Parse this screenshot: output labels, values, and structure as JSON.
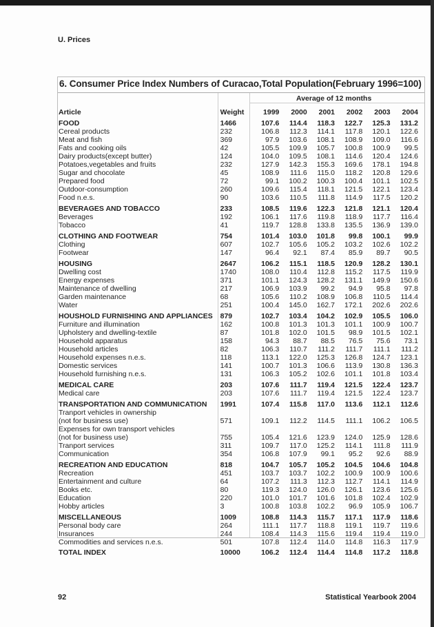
{
  "section": "U. Prices",
  "table": {
    "title": "6. Consumer Price Index Numbers of Curacao,Total Population(February 1996=100)",
    "span_header": "Average of 12 months",
    "headers": [
      "Article",
      "Weight",
      "1999",
      "2000",
      "2001",
      "2002",
      "2003",
      "2004"
    ],
    "rows": [
      {
        "type": "group",
        "cells": [
          "FOOD",
          "1466",
          "107.6",
          "114.4",
          "118.3",
          "122.7",
          "125.3",
          "131.2"
        ]
      },
      {
        "type": "item",
        "cells": [
          "Cereal products",
          "232",
          "106.8",
          "112.3",
          "114.1",
          "117.8",
          "120.1",
          "122.6"
        ]
      },
      {
        "type": "item",
        "cells": [
          "Meat and fish",
          "369",
          "97.9",
          "103.6",
          "108.1",
          "108.9",
          "109.0",
          "116.6"
        ]
      },
      {
        "type": "item",
        "cells": [
          "Fats and cooking oils",
          "42",
          "105.5",
          "109.9",
          "105.7",
          "100.8",
          "100.9",
          "99.5"
        ]
      },
      {
        "type": "item",
        "cells": [
          "Dairy products(except butter)",
          "124",
          "104.0",
          "109.5",
          "108.1",
          "114.6",
          "120.4",
          "124.6"
        ]
      },
      {
        "type": "item",
        "cells": [
          "Potatoes,vegetables and fruits",
          "232",
          "127.9",
          "142.3",
          "155.3",
          "169.6",
          "178.1",
          "194.8"
        ]
      },
      {
        "type": "item",
        "cells": [
          "Sugar and chocolate",
          "45",
          "108.9",
          "111.6",
          "115.0",
          "118.2",
          "120.8",
          "129.6"
        ]
      },
      {
        "type": "item",
        "cells": [
          "Prepared food",
          "72",
          "99.1",
          "100.2",
          "100.3",
          "100.4",
          "101.1",
          "102.5"
        ]
      },
      {
        "type": "item",
        "cells": [
          "Outdoor-consumption",
          "260",
          "109.6",
          "115.4",
          "118.1",
          "121.5",
          "122.1",
          "123.4"
        ]
      },
      {
        "type": "item",
        "cells": [
          "Food n.e.s.",
          "90",
          "103.6",
          "110.5",
          "111.8",
          "114.9",
          "117.5",
          "120.2"
        ]
      },
      {
        "type": "group",
        "cells": [
          "BEVERAGES AND TOBACCO",
          "233",
          "108.5",
          "119.6",
          "122.3",
          "121.8",
          "121.1",
          "120.4"
        ]
      },
      {
        "type": "item",
        "cells": [
          "Beverages",
          "192",
          "106.1",
          "117.6",
          "119.8",
          "118.9",
          "117.7",
          "116.4"
        ]
      },
      {
        "type": "item",
        "cells": [
          "Tobacco",
          "41",
          "119.7",
          "128.8",
          "133.8",
          "135.5",
          "136.9",
          "139.0"
        ]
      },
      {
        "type": "group",
        "cells": [
          "CLOTHING AND FOOTWEAR",
          "754",
          "101.4",
          "103.0",
          "101.8",
          "99.8",
          "100.1",
          "99.9"
        ]
      },
      {
        "type": "item",
        "cells": [
          "Clothing",
          "607",
          "102.7",
          "105.6",
          "105.2",
          "103.2",
          "102.6",
          "102.2"
        ]
      },
      {
        "type": "item",
        "cells": [
          "Footwear",
          "147",
          "96.4",
          "92.1",
          "87.4",
          "85.9",
          "89.7",
          "90.5"
        ]
      },
      {
        "type": "group",
        "cells": [
          "HOUSING",
          "2647",
          "106.2",
          "115.1",
          "118.5",
          "120.9",
          "128.2",
          "130.1"
        ]
      },
      {
        "type": "item",
        "cells": [
          "Dwelling cost",
          "1740",
          "108.0",
          "110.4",
          "112.8",
          "115.2",
          "117.5",
          "119.9"
        ]
      },
      {
        "type": "item",
        "cells": [
          "Energy expenses",
          "371",
          "101.1",
          "124.3",
          "128.2",
          "131.1",
          "149.9",
          "150.6"
        ]
      },
      {
        "type": "item",
        "cells": [
          "Maintenance of dwelling",
          "217",
          "106.9",
          "103.9",
          "99.2",
          "94.9",
          "95.8",
          "97.8"
        ]
      },
      {
        "type": "item",
        "cells": [
          "Garden maintenance",
          "68",
          "105.6",
          "110.2",
          "108.9",
          "106.8",
          "110.5",
          "114.4"
        ]
      },
      {
        "type": "item",
        "cells": [
          "Water",
          "251",
          "100.4",
          "145.0",
          "162.7",
          "172.1",
          "202.6",
          "202.6"
        ]
      },
      {
        "type": "group",
        "cells": [
          "HOUSHOLD FURNISHING AND APPLIANCES",
          "879",
          "102.7",
          "103.4",
          "104.2",
          "102.9",
          "105.5",
          "106.0"
        ]
      },
      {
        "type": "item",
        "cells": [
          "Furniture and illumination",
          "162",
          "100.8",
          "101.3",
          "101.3",
          "101.1",
          "100.9",
          "100.7"
        ]
      },
      {
        "type": "item",
        "cells": [
          "Upholstery and dwelling-textile",
          "87",
          "101.8",
          "102.0",
          "101.5",
          "98.9",
          "101.5",
          "102.1"
        ]
      },
      {
        "type": "item",
        "cells": [
          "Household apparatus",
          "158",
          "94.3",
          "88.7",
          "88.5",
          "76.5",
          "75.6",
          "73.1"
        ]
      },
      {
        "type": "item",
        "cells": [
          "Household articles",
          "82",
          "106.3",
          "110.7",
          "111.2",
          "111.7",
          "111.1",
          "111.2"
        ]
      },
      {
        "type": "item",
        "cells": [
          "Household expenses n.e.s.",
          "118",
          "113.1",
          "122.0",
          "125.3",
          "126.8",
          "124.7",
          "123.1"
        ]
      },
      {
        "type": "item",
        "cells": [
          "Domestic services",
          "141",
          "100.7",
          "101.3",
          "106.6",
          "113.9",
          "130.8",
          "136.3"
        ]
      },
      {
        "type": "item",
        "cells": [
          "Household furnishing n.e.s.",
          "131",
          "106.3",
          "105.2",
          "102.6",
          "101.1",
          "101.8",
          "103.4"
        ]
      },
      {
        "type": "group",
        "cells": [
          "MEDICAL CARE",
          "203",
          "107.6",
          "111.7",
          "119.4",
          "121.5",
          "122.4",
          "123.7"
        ]
      },
      {
        "type": "item",
        "cells": [
          "Medical care",
          "203",
          "107.6",
          "111.7",
          "119.4",
          "121.5",
          "122.4",
          "123.7"
        ]
      },
      {
        "type": "group",
        "cells": [
          "TRANSPORTATION AND COMMUNICATION",
          "1991",
          "107.4",
          "115.8",
          "117.0",
          "113.6",
          "112.1",
          "112.6"
        ]
      },
      {
        "type": "item",
        "cells": [
          "Tranport vehicles in ownership",
          "",
          "",
          "",
          "",
          "",
          "",
          ""
        ]
      },
      {
        "type": "item",
        "cells": [
          "(not for business use)",
          "571",
          "109.1",
          "112.2",
          "114.5",
          "111.1",
          "106.2",
          "106.5"
        ]
      },
      {
        "type": "item",
        "cells": [
          "Expenses for own transport vehicles",
          "",
          "",
          "",
          "",
          "",
          "",
          ""
        ]
      },
      {
        "type": "item",
        "cells": [
          "(not for business use)",
          "755",
          "105.4",
          "121.6",
          "123.9",
          "124.0",
          "125.9",
          "128.6"
        ]
      },
      {
        "type": "item",
        "cells": [
          "Tranport services",
          "311",
          "109.7",
          "117.0",
          "125.2",
          "114.1",
          "111.8",
          "111.9"
        ]
      },
      {
        "type": "item",
        "cells": [
          "Communication",
          "354",
          "106.8",
          "107.9",
          "99.1",
          "95.2",
          "92.6",
          "88.9"
        ]
      },
      {
        "type": "group",
        "cells": [
          "RECREATION AND EDUCATION",
          "818",
          "104.7",
          "105.7",
          "105.2",
          "104.5",
          "104.6",
          "104.8"
        ]
      },
      {
        "type": "item",
        "cells": [
          "Recreation",
          "451",
          "103.7",
          "103.7",
          "102.2",
          "100.9",
          "100.9",
          "100.6"
        ]
      },
      {
        "type": "item",
        "cells": [
          "Entertainment and culture",
          "64",
          "107.2",
          "111.3",
          "112.3",
          "112.7",
          "114.1",
          "114.9"
        ]
      },
      {
        "type": "item",
        "cells": [
          "Books etc.",
          "80",
          "119.3",
          "124.0",
          "126.0",
          "126.1",
          "123.6",
          "125.6"
        ]
      },
      {
        "type": "item",
        "cells": [
          "Education",
          "220",
          "101.0",
          "101.7",
          "101.6",
          "101.8",
          "102.4",
          "102.9"
        ]
      },
      {
        "type": "item",
        "cells": [
          "Hobby articles",
          "3",
          "100.8",
          "103.8",
          "102.2",
          "96.9",
          "105.9",
          "106.7"
        ]
      },
      {
        "type": "group",
        "cells": [
          "MISCELLANEOUS",
          "1009",
          "108.8",
          "114.3",
          "115.7",
          "117.1",
          "117.9",
          "118.6"
        ]
      },
      {
        "type": "item",
        "cells": [
          "Personal body care",
          "264",
          "111.1",
          "117.7",
          "118.8",
          "119.1",
          "119.7",
          "119.6"
        ]
      },
      {
        "type": "item",
        "cells": [
          "Insurances",
          "244",
          "108.4",
          "114.3",
          "115.6",
          "119.4",
          "119.4",
          "119.0"
        ]
      },
      {
        "type": "item",
        "cells": [
          "Commodities and services n.e.s.",
          "501",
          "107.8",
          "112.4",
          "114.0",
          "114.8",
          "116.3",
          "117.9"
        ]
      },
      {
        "type": "total",
        "cells": [
          "TOTAL INDEX",
          "10000",
          "106.2",
          "112.4",
          "114.4",
          "114.8",
          "117.2",
          "118.8"
        ]
      }
    ]
  },
  "footer": {
    "page_number": "92",
    "publication": "Statistical Yearbook 2004"
  }
}
